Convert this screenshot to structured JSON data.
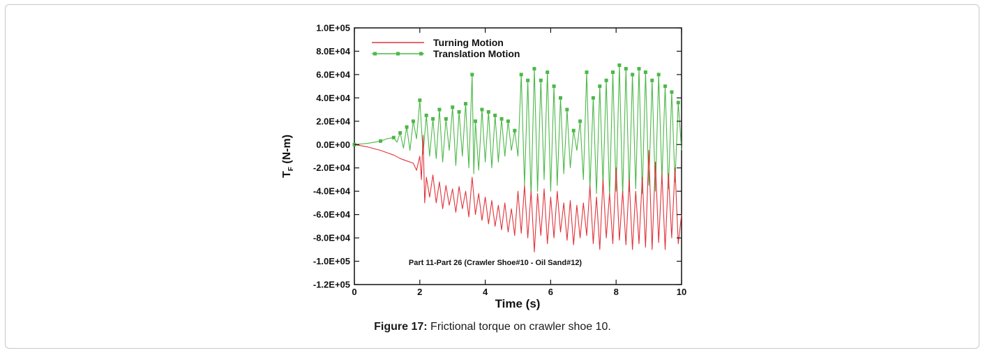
{
  "figure": {
    "caption_label": "Figure 17:",
    "caption_text": " Frictional torque on crawler shoe 10."
  },
  "chart_data": {
    "type": "line",
    "title": "",
    "xlabel": "Time (s)",
    "ylabel_main": "T",
    "ylabel_sub": "F",
    "ylabel_unit": " (N-m)",
    "xlim": [
      0,
      10
    ],
    "ylim": [
      -120000,
      100000
    ],
    "x_ticks": [
      0,
      2,
      4,
      6,
      8,
      10
    ],
    "x_tick_labels": [
      "0",
      "2",
      "4",
      "6",
      "8",
      "10"
    ],
    "y_ticks": [
      100000,
      80000,
      60000,
      40000,
      20000,
      0,
      -20000,
      -40000,
      -60000,
      -80000,
      -100000,
      -120000
    ],
    "y_tick_labels": [
      "1.0E+05",
      "8.0E+04",
      "6.0E+04",
      "4.0E+04",
      "2.0E+04",
      "0.0E+00",
      "-2.0E+04",
      "-4.0E+04",
      "-6.0E+04",
      "-8.0E+04",
      "-1.0E+05",
      "-1.2E+05"
    ],
    "grid": false,
    "legend_position": "top-left",
    "annotation": "Part 11-Part 26 (Crawler Shoe#10 - Oil Sand#12)",
    "series": [
      {
        "name": "Turning Motion",
        "color": "#e0333a",
        "marker": "none",
        "x": [
          0.0,
          0.4,
          0.8,
          1.0,
          1.2,
          1.4,
          1.6,
          1.8,
          1.9,
          2.0,
          2.05,
          2.1,
          2.15,
          2.2,
          2.3,
          2.4,
          2.5,
          2.6,
          2.7,
          2.8,
          2.9,
          3.0,
          3.1,
          3.2,
          3.3,
          3.4,
          3.5,
          3.6,
          3.7,
          3.8,
          3.9,
          4.0,
          4.1,
          4.2,
          4.3,
          4.4,
          4.5,
          4.6,
          4.7,
          4.8,
          4.9,
          5.0,
          5.1,
          5.2,
          5.3,
          5.4,
          5.5,
          5.6,
          5.7,
          5.8,
          5.9,
          6.0,
          6.1,
          6.2,
          6.3,
          6.4,
          6.5,
          6.6,
          6.7,
          6.8,
          6.9,
          7.0,
          7.1,
          7.2,
          7.3,
          7.4,
          7.5,
          7.6,
          7.7,
          7.8,
          7.9,
          8.0,
          8.1,
          8.2,
          8.3,
          8.4,
          8.5,
          8.6,
          8.7,
          8.8,
          8.9,
          9.0,
          9.1,
          9.2,
          9.3,
          9.4,
          9.5,
          9.6,
          9.7,
          9.8,
          9.9,
          10.0
        ],
        "values": [
          0,
          -2000,
          -5000,
          -7000,
          -9000,
          -12000,
          -14000,
          -16000,
          -22000,
          -10000,
          -30000,
          8000,
          -50000,
          -28000,
          -45000,
          -26000,
          -50000,
          -32000,
          -55000,
          -35000,
          -52000,
          -38000,
          -58000,
          -36000,
          -55000,
          -40000,
          -62000,
          -28000,
          -60000,
          -42000,
          -65000,
          -45000,
          -68000,
          -48000,
          -70000,
          -52000,
          -73000,
          -50000,
          -75000,
          -55000,
          -78000,
          -40000,
          -76000,
          -35000,
          -80000,
          -40000,
          -92000,
          -42000,
          -78000,
          -38000,
          -85000,
          -45000,
          -80000,
          -40000,
          -75000,
          -50000,
          -82000,
          -48000,
          -86000,
          -52000,
          -80000,
          -50000,
          -78000,
          -35000,
          -85000,
          -45000,
          -90000,
          -30000,
          -80000,
          -42000,
          -85000,
          -20000,
          -82000,
          -40000,
          -86000,
          -30000,
          -90000,
          -40000,
          -85000,
          -28000,
          -88000,
          -5000,
          -90000,
          -15000,
          -84000,
          -25000,
          -90000,
          -25000,
          -80000,
          -20000,
          -85000,
          -60000
        ]
      },
      {
        "name": "Translation Motion",
        "color": "#4cb848",
        "marker": "square",
        "x": [
          0.0,
          0.4,
          0.8,
          1.0,
          1.2,
          1.3,
          1.4,
          1.5,
          1.6,
          1.7,
          1.8,
          1.9,
          2.0,
          2.1,
          2.2,
          2.3,
          2.4,
          2.5,
          2.6,
          2.7,
          2.8,
          2.9,
          3.0,
          3.1,
          3.2,
          3.3,
          3.4,
          3.5,
          3.6,
          3.65,
          3.7,
          3.8,
          3.9,
          4.0,
          4.1,
          4.2,
          4.3,
          4.4,
          4.5,
          4.6,
          4.7,
          4.8,
          4.9,
          5.0,
          5.1,
          5.2,
          5.3,
          5.4,
          5.5,
          5.6,
          5.7,
          5.8,
          5.9,
          6.0,
          6.1,
          6.2,
          6.3,
          6.4,
          6.5,
          6.6,
          6.7,
          6.8,
          6.9,
          7.0,
          7.1,
          7.2,
          7.3,
          7.4,
          7.5,
          7.6,
          7.7,
          7.8,
          7.9,
          8.0,
          8.1,
          8.2,
          8.3,
          8.4,
          8.5,
          8.6,
          8.7,
          8.8,
          8.9,
          9.0,
          9.1,
          9.2,
          9.3,
          9.4,
          9.5,
          9.6,
          9.7,
          9.8,
          9.9,
          10.0
        ],
        "values": [
          0,
          1000,
          3000,
          5000,
          6000,
          2000,
          10000,
          -3000,
          15000,
          -5000,
          20000,
          5000,
          38000,
          -8000,
          25000,
          -10000,
          22000,
          -12000,
          30000,
          -15000,
          22000,
          -5000,
          32000,
          -18000,
          28000,
          -10000,
          35000,
          -20000,
          60000,
          -25000,
          20000,
          -22000,
          30000,
          -15000,
          28000,
          -20000,
          25000,
          -15000,
          22000,
          -10000,
          20000,
          -5000,
          12000,
          -10000,
          60000,
          -35000,
          55000,
          -45000,
          65000,
          -40000,
          55000,
          -30000,
          62000,
          -40000,
          50000,
          -35000,
          40000,
          -25000,
          30000,
          -20000,
          12000,
          -5000,
          20000,
          -30000,
          62000,
          -38000,
          40000,
          -42000,
          50000,
          -35000,
          55000,
          -45000,
          62000,
          -40000,
          68000,
          -45000,
          65000,
          -40000,
          60000,
          -38000,
          65000,
          -42000,
          62000,
          -35000,
          55000,
          -40000,
          60000,
          -30000,
          50000,
          -38000,
          45000,
          -32000,
          36000,
          -5000
        ]
      }
    ]
  }
}
